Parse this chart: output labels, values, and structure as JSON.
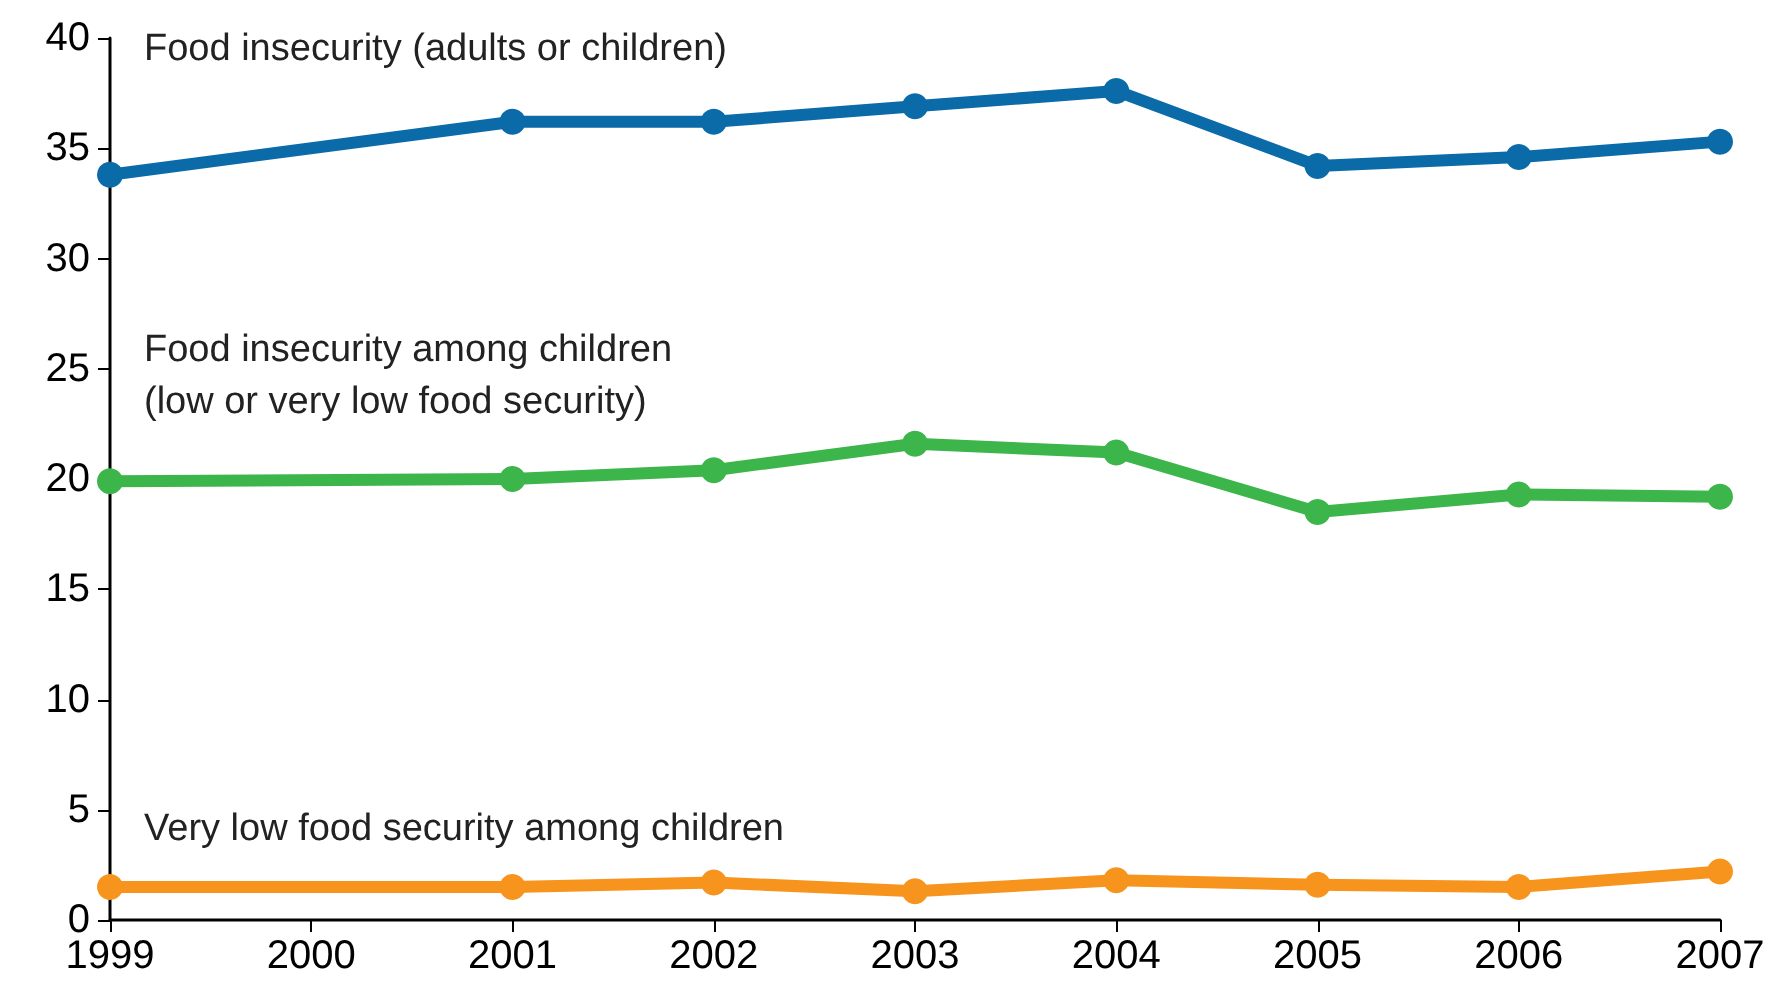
{
  "chart_data": {
    "type": "line",
    "x": [
      1999,
      2001,
      2002,
      2003,
      2004,
      2005,
      2006,
      2007
    ],
    "series": [
      {
        "name": "Food insecurity (adults or children)",
        "color": "#0b6aa8",
        "values": [
          33.8,
          36.2,
          36.2,
          36.9,
          37.6,
          34.2,
          34.6,
          35.3
        ]
      },
      {
        "name": "Food insecurity among children\n(low or very low food security)",
        "color": "#3cb54a",
        "values": [
          19.9,
          20.0,
          20.4,
          21.6,
          21.2,
          18.5,
          19.3,
          19.2
        ]
      },
      {
        "name": "Very low food security among children",
        "color": "#f7941d",
        "values": [
          1.5,
          1.5,
          1.7,
          1.3,
          1.8,
          1.6,
          1.5,
          2.2
        ]
      }
    ],
    "xlim": [
      1999,
      2007
    ],
    "xticks": [
      1999,
      2000,
      2001,
      2002,
      2003,
      2004,
      2005,
      2006,
      2007
    ],
    "ylim": [
      0,
      40
    ],
    "yticks": [
      0,
      5,
      10,
      15,
      20,
      25,
      30,
      35,
      40
    ],
    "grid": false,
    "legend": false,
    "marker": "circle",
    "line_style": "solid"
  }
}
